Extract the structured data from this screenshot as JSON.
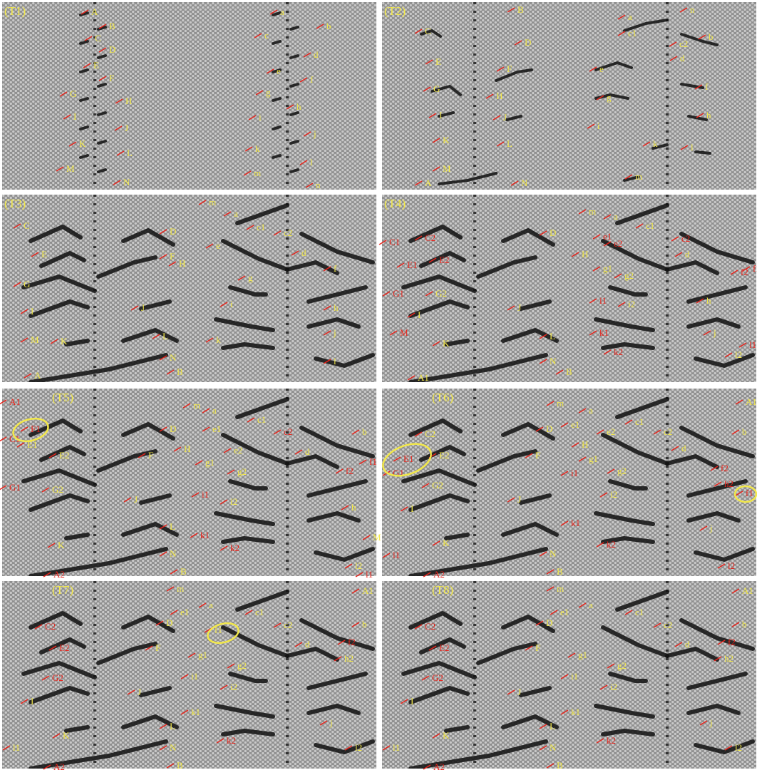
{
  "panels": [
    {
      "label": "(T1)",
      "labels": [
        "A",
        "B",
        "C",
        "D",
        "E",
        "F",
        "G",
        "H",
        "I",
        "J",
        "K",
        "L",
        "M",
        "N",
        "a",
        "b",
        "c",
        "d",
        "e",
        "f",
        "g",
        "h",
        "i",
        "j",
        "k",
        "l",
        "m",
        "n"
      ]
    },
    {
      "label": "(T2)",
      "labels": [
        "B",
        "C",
        "D",
        "E",
        "F",
        "G",
        "H",
        "I",
        "J",
        "K",
        "L",
        "M",
        "N",
        "A",
        "a",
        "n",
        "c1",
        "b",
        "c2",
        "d",
        "e",
        "f",
        "g",
        "h",
        "i",
        "k",
        "l",
        "m"
      ]
    },
    {
      "label": "(T3)",
      "labels": [
        "C",
        "D",
        "E",
        "F",
        "G",
        "H",
        "I",
        "J",
        "K",
        "L",
        "M",
        "N",
        "A",
        "B",
        "m",
        "a",
        "c1",
        "c2",
        "d",
        "e",
        "f",
        "g",
        "i",
        "h",
        "j",
        "k",
        "l"
      ]
    },
    {
      "label": "(T4)",
      "labels": [
        "C2",
        "C1",
        "E1",
        "E2",
        "G1",
        "G2",
        "D",
        "H",
        "I",
        "J",
        "K",
        "L",
        "M",
        "N",
        "A1",
        "B",
        "m",
        "a",
        "e1",
        "e2",
        "c1",
        "c2",
        "d",
        "g1",
        "g2",
        "i1",
        "i2",
        "k1",
        "k2",
        "f1",
        "f2",
        "h",
        "j",
        "l1",
        "l2"
      ]
    },
    {
      "label": "(T5)",
      "labels": [
        "A1",
        "F1",
        "C1",
        "E1",
        "E2",
        "G1",
        "G2",
        "D",
        "F",
        "J",
        "L",
        "K",
        "N",
        "A2",
        "B",
        "m",
        "a",
        "e1",
        "e2",
        "c1",
        "c2",
        "d",
        "H",
        "g1",
        "g2",
        "i1",
        "i2",
        "k1",
        "k2",
        "b",
        "f1",
        "f2",
        "h",
        "M",
        "l2",
        "l1"
      ]
    },
    {
      "label": "(T6)",
      "labels": [
        "A1",
        "m",
        "a",
        "e1",
        "D",
        "c1",
        "c2",
        "d",
        "C2",
        "E2",
        "E1",
        "F",
        "G1",
        "G2",
        "H",
        "e2",
        "g1",
        "g2",
        "i1",
        "i2",
        "I",
        "J",
        "k1",
        "k2",
        "K",
        "l1",
        "N",
        "A2",
        "B",
        "b",
        "f2",
        "h2",
        "f1",
        "l2",
        "j"
      ]
    },
    {
      "label": "(T7)",
      "labels": [
        "A1",
        "m",
        "e1",
        "a",
        "D",
        "c1",
        "c2",
        "d",
        "C2",
        "E2",
        "F",
        "f1",
        "g1",
        "g2",
        "G2",
        "i1",
        "I",
        "J",
        "i2",
        "k1",
        "K",
        "L",
        "k2",
        "N",
        "B",
        "A2",
        "l1",
        "b",
        "f2",
        "h2",
        "j",
        "l2"
      ]
    },
    {
      "label": "(T8)",
      "labels": [
        "A1",
        "m",
        "e1",
        "a",
        "D",
        "c1",
        "c2",
        "d",
        "C2",
        "E2",
        "F",
        "g1",
        "g2",
        "G2",
        "i1",
        "I",
        "J",
        "i2",
        "k1",
        "K",
        "L",
        "k2",
        "N",
        "B",
        "A2",
        "l1",
        "b",
        "f2",
        "h2",
        "j",
        "l2"
      ]
    }
  ]
}
